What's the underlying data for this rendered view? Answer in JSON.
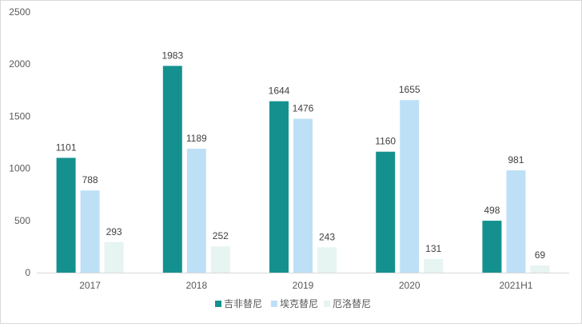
{
  "chart_data": {
    "type": "bar",
    "title": "",
    "xlabel": "",
    "ylabel": "",
    "categories": [
      "2017",
      "2018",
      "2019",
      "2020",
      "2021H1"
    ],
    "ylim": [
      0,
      2500
    ],
    "yticks": [
      0,
      500,
      1000,
      1500,
      2000,
      2500
    ],
    "grid": false,
    "legend_position": "bottom",
    "series": [
      {
        "name": "吉非替尼",
        "color": "#14918f",
        "values": [
          1101,
          1983,
          1644,
          1160,
          498
        ]
      },
      {
        "name": "埃克替尼",
        "color": "#bde0f6",
        "values": [
          788,
          1189,
          1476,
          1655,
          981
        ]
      },
      {
        "name": "厄洛替尼",
        "color": "#e6f4f2",
        "values": [
          293,
          252,
          243,
          131,
          69
        ]
      }
    ]
  }
}
